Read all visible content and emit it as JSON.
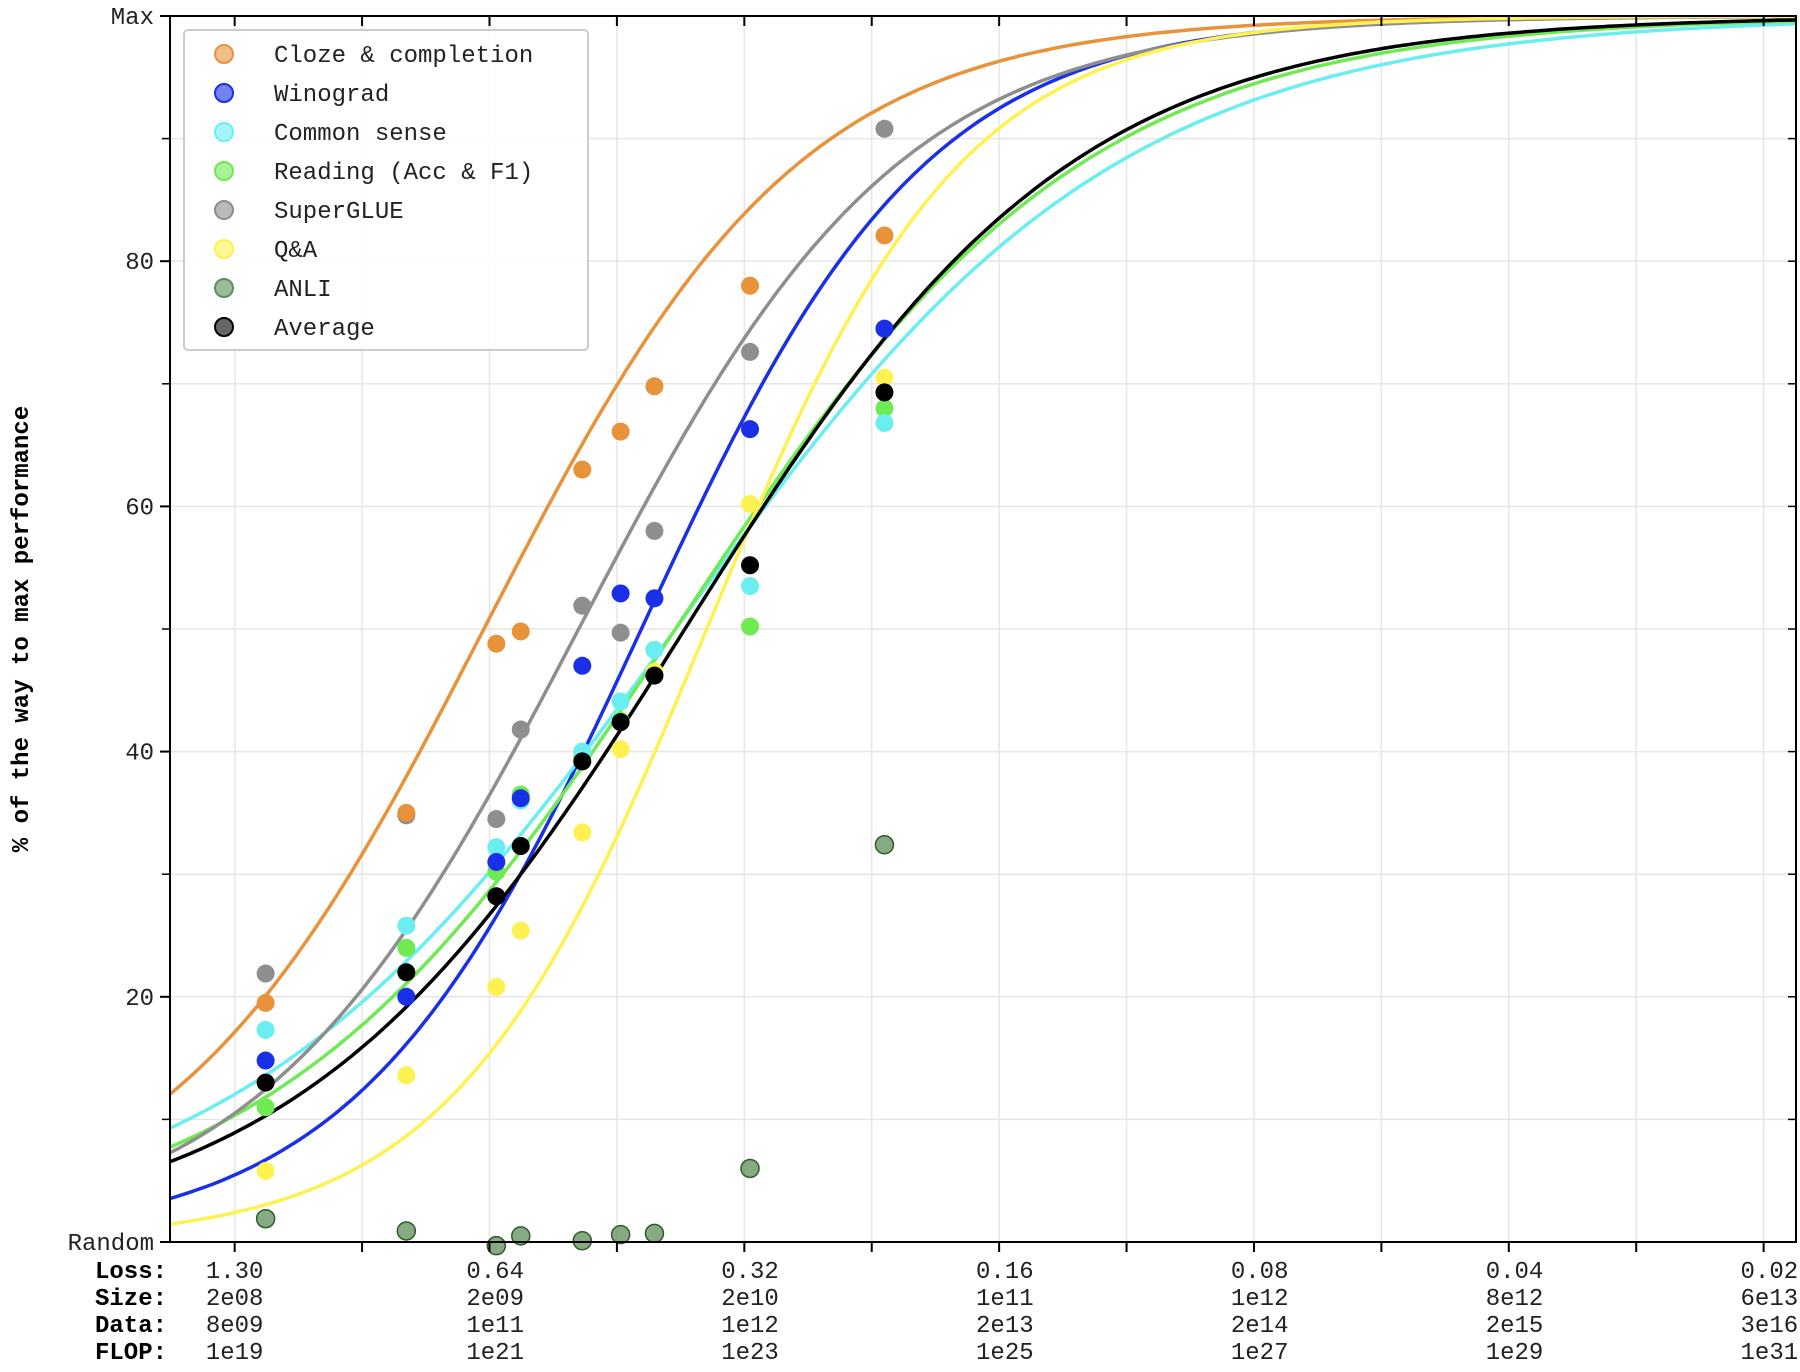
{
  "chart_data": {
    "type": "line",
    "ylabel": "% of the way to max performance",
    "ylim": [
      0,
      100
    ],
    "y_ticks": [
      {
        "value": 0,
        "label": "Random"
      },
      {
        "value": 20,
        "label": "20"
      },
      {
        "value": 40,
        "label": "40"
      },
      {
        "value": 60,
        "label": "60"
      },
      {
        "value": 80,
        "label": "80"
      },
      {
        "value": 100,
        "label": "Max"
      }
    ],
    "x_scale": "log-loss (log2 loss steps, decreasing to the right)",
    "xlim_loss": [
      1.55,
      0.0186
    ],
    "x_rows": [
      "Loss:",
      "Size:",
      "Data:",
      "FLOP:"
    ],
    "x_ticks": [
      {
        "loss": 1.3,
        "labels": [
          "1.30",
          "2e08",
          "8e09",
          "1e19"
        ]
      },
      {
        "loss": 0.64,
        "labels": [
          "0.64",
          "2e09",
          "1e11",
          "1e21"
        ]
      },
      {
        "loss": 0.32,
        "labels": [
          "0.32",
          "2e10",
          "1e12",
          "1e23"
        ]
      },
      {
        "loss": 0.16,
        "labels": [
          "0.16",
          "1e11",
          "2e13",
          "1e25"
        ]
      },
      {
        "loss": 0.08,
        "labels": [
          "0.08",
          "1e12",
          "2e14",
          "1e27"
        ]
      },
      {
        "loss": 0.04,
        "labels": [
          "0.04",
          "8e12",
          "2e15",
          "1e29"
        ]
      },
      {
        "loss": 0.02,
        "labels": [
          "0.02",
          "6e13",
          "3e16",
          "1e31"
        ]
      }
    ],
    "grid": true,
    "legend_position": "top-left",
    "series": [
      {
        "name": "Cloze & completion",
        "color": "#E8923A",
        "curve_mid": 0.66,
        "curve_scale": 0.62,
        "curve_max": 100,
        "points": [
          [
            1.195,
            19.5
          ],
          [
            0.815,
            35
          ],
          [
            0.638,
            48.8
          ],
          [
            0.597,
            49.8
          ],
          [
            0.505,
            63
          ],
          [
            0.455,
            66.1
          ],
          [
            0.415,
            69.8
          ],
          [
            0.32,
            78
          ],
          [
            0.222,
            82.1
          ]
        ]
      },
      {
        "name": "Winograd",
        "color": "#1A2FE8",
        "curve_mid": 0.43,
        "curve_scale": 0.56,
        "curve_max": 100,
        "points": [
          [
            1.195,
            14.8
          ],
          [
            0.815,
            20
          ],
          [
            0.638,
            31
          ],
          [
            0.597,
            36.2
          ],
          [
            0.505,
            47
          ],
          [
            0.455,
            52.9
          ],
          [
            0.415,
            52.5
          ],
          [
            0.32,
            66.3
          ],
          [
            0.222,
            74.5
          ]
        ]
      },
      {
        "name": "Common sense",
        "color": "#6AEEF0",
        "curve_mid": 0.392,
        "curve_scale": 0.87,
        "curve_max": 100,
        "points": [
          [
            1.195,
            17.3
          ],
          [
            0.815,
            25.8
          ],
          [
            0.638,
            32.2
          ],
          [
            0.597,
            36
          ],
          [
            0.505,
            40
          ],
          [
            0.455,
            44.1
          ],
          [
            0.415,
            48.3
          ],
          [
            0.32,
            53.5
          ],
          [
            0.222,
            66.8
          ]
        ]
      },
      {
        "name": "Reading (Acc & F1)",
        "color": "#6EEA52",
        "curve_mid": 0.392,
        "curve_scale": 0.8,
        "curve_max": 100,
        "points": [
          [
            1.195,
            11
          ],
          [
            0.815,
            24
          ],
          [
            0.638,
            30.2
          ],
          [
            0.597,
            36.5
          ],
          [
            0.505,
            39.5
          ],
          [
            0.455,
            42.5
          ],
          [
            0.415,
            46.5
          ],
          [
            0.32,
            50.2
          ],
          [
            0.222,
            68
          ]
        ]
      },
      {
        "name": "SuperGLUE",
        "color": "#8E8E8E",
        "curve_mid": 0.51,
        "curve_scale": 0.63,
        "curve_max": 100,
        "points": [
          [
            1.195,
            21.9
          ],
          [
            0.815,
            34.8
          ],
          [
            0.638,
            34.5
          ],
          [
            0.597,
            41.8
          ],
          [
            0.505,
            51.9
          ],
          [
            0.455,
            49.7
          ],
          [
            0.415,
            58
          ],
          [
            0.32,
            72.6
          ],
          [
            0.222,
            90.8
          ]
        ]
      },
      {
        "name": "Q&A",
        "color": "#FFF250",
        "curve_mid": 0.36,
        "curve_scale": 0.5,
        "curve_max": 100,
        "points": [
          [
            1.195,
            5.8
          ],
          [
            0.815,
            13.6
          ],
          [
            0.638,
            20.8
          ],
          [
            0.597,
            25.4
          ],
          [
            0.505,
            33.4
          ],
          [
            0.455,
            40.2
          ],
          [
            0.415,
            46.5
          ],
          [
            0.32,
            60.2
          ],
          [
            0.222,
            70.5
          ]
        ]
      },
      {
        "name": "ANLI",
        "color": "#5E8F58",
        "curve_mid": null,
        "curve_scale": null,
        "curve_max": null,
        "points": [
          [
            1.195,
            1.9
          ],
          [
            0.815,
            0.9
          ],
          [
            0.638,
            -0.3
          ],
          [
            0.597,
            0.5
          ],
          [
            0.505,
            0.1
          ],
          [
            0.455,
            0.6
          ],
          [
            0.415,
            0.7
          ],
          [
            0.32,
            6
          ],
          [
            0.222,
            32.4
          ]
        ]
      },
      {
        "name": "Average",
        "color": "#000000",
        "curve_mid": 0.382,
        "curve_scale": 0.76,
        "curve_max": 100,
        "points": [
          [
            1.195,
            13
          ],
          [
            0.815,
            22
          ],
          [
            0.638,
            28.2
          ],
          [
            0.597,
            32.3
          ],
          [
            0.505,
            39.2
          ],
          [
            0.455,
            42.4
          ],
          [
            0.415,
            46.2
          ],
          [
            0.32,
            55.2
          ],
          [
            0.222,
            69.3
          ]
        ]
      }
    ]
  }
}
